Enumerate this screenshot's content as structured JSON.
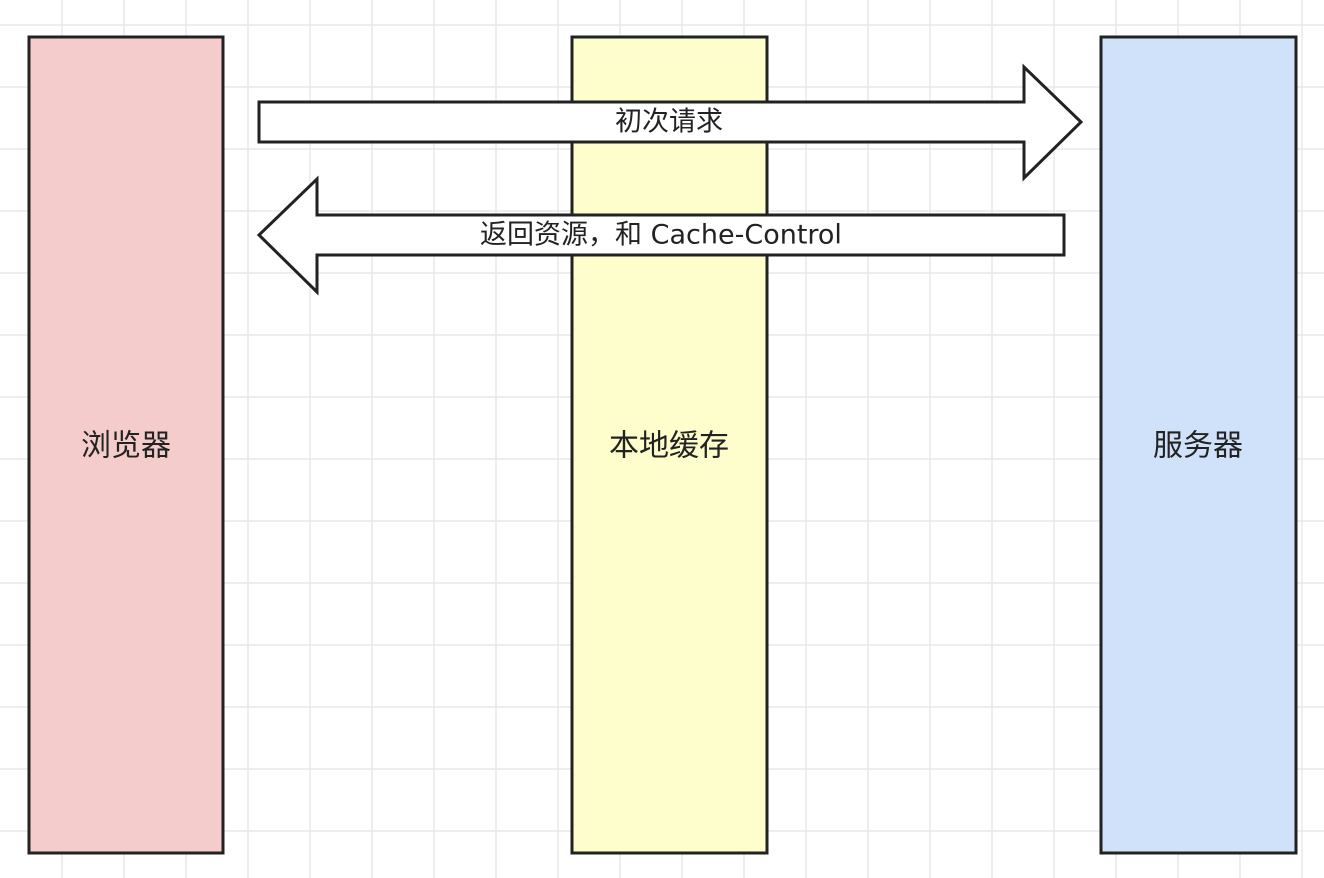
{
  "diagram": {
    "nodes": {
      "browser": {
        "label": "浏览器",
        "color": "#f4cccc"
      },
      "cache": {
        "label": "本地缓存",
        "color": "#fefdcc"
      },
      "server": {
        "label": "服务器",
        "color": "#d0e2fa"
      }
    },
    "arrows": {
      "request": {
        "label": "初次请求",
        "direction": "right"
      },
      "response": {
        "label": "返回资源，和 Cache-Control",
        "direction": "left"
      }
    },
    "colors": {
      "grid": "#e8e8e8",
      "stroke": "#222222",
      "background": "#ffffff"
    }
  }
}
